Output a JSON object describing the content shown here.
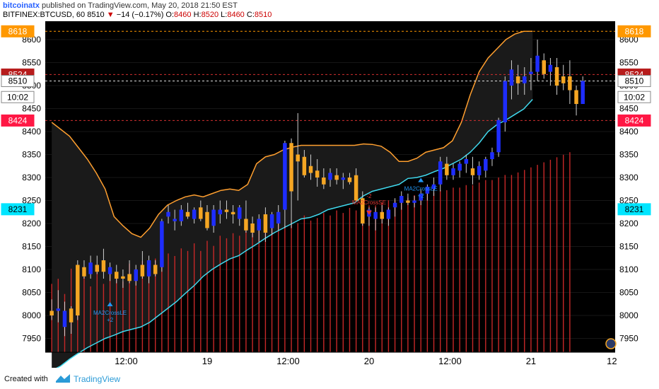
{
  "header": {
    "user": "bitcoinatx",
    "published": " published on TradingView.com, May 20, 2018 21:50 EST",
    "symbol": "BITFINEX:BTCUSD, 60",
    "last": "8510",
    "change_arrow": "▼",
    "change": "−14 (−0.17%)",
    "o_label": "O:",
    "o": "8460",
    "h_label": "H:",
    "h": "8520",
    "l_label": "L:",
    "l": "8460",
    "c_label": "C:",
    "c": "8510"
  },
  "footer": {
    "created_with": "Created with",
    "brand": "TradingView"
  },
  "chart_data": {
    "type": "candlestick",
    "y_range": [
      7920,
      8640
    ],
    "y_ticks": [
      7950,
      8000,
      8050,
      8100,
      8150,
      8200,
      8250,
      8300,
      8350,
      8400,
      8450,
      8500,
      8550,
      8600
    ],
    "x_ticks": [
      {
        "label": "12:00",
        "t": 18.5
      },
      {
        "label": "19",
        "t": 31
      },
      {
        "label": "12:00",
        "t": 43.5
      },
      {
        "label": "20",
        "t": 56
      },
      {
        "label": "12:00",
        "t": 68.5
      },
      {
        "label": "21",
        "t": 81
      },
      {
        "label": "12",
        "t": 93.5
      }
    ],
    "x_range": [
      6,
      94
    ],
    "price_labels": [
      {
        "text": "8618",
        "value": 8618,
        "bg": "#ff9800",
        "fg": "#ffffff",
        "line": "#ff9800",
        "dash": true
      },
      {
        "text": "8524",
        "value": 8524,
        "bg": "#b71c1c",
        "fg": "#ffffff",
        "line": "#d32f2f",
        "dash": true
      },
      {
        "text": "8510",
        "value": 8510,
        "bg": "#ffffff",
        "fg": "#000000",
        "line": "#dddddd",
        "dash": true
      },
      {
        "text": "10:02",
        "value": 8475,
        "bg": "#ffffff",
        "fg": "#000000",
        "line": null,
        "dash": false
      },
      {
        "text": "8424",
        "value": 8424,
        "bg": "#ff1744",
        "fg": "#ffffff",
        "line": "#d32f2f",
        "dash": true
      },
      {
        "text": "8231",
        "value": 8231,
        "bg": "#00e5ff",
        "fg": "#000000",
        "line": null,
        "dash": false
      }
    ],
    "annotations": [
      {
        "text": "MA2CrossLE",
        "sub": "+2",
        "t": 16,
        "value": 8020,
        "color": "#2196f3",
        "dir": "up"
      },
      {
        "text": "MA2CrossSE",
        "sub": "-2",
        "t": 56,
        "value": 8225,
        "color": "#e53935",
        "dir": "down"
      },
      {
        "text": "MA2CrossLE",
        "sub": "+2",
        "t": 64,
        "value": 8290,
        "color": "#2196f3",
        "dir": "up"
      }
    ],
    "colors": {
      "up": "#1e2dff",
      "down": "#f5a623",
      "upper_band": "#ff9f2f",
      "lower_band": "#40d9ee",
      "volume": "#c62828",
      "bg": "#000000",
      "band_fill": "#1a1a1a"
    },
    "upper_band": [
      8420,
      8405,
      8390,
      8365,
      8340,
      8310,
      8275,
      8215,
      8195,
      8178,
      8170,
      8190,
      8220,
      8240,
      8250,
      8258,
      8262,
      8258,
      8265,
      8272,
      8275,
      8272,
      8285,
      8330,
      8345,
      8350,
      8360,
      8366,
      8370,
      8370,
      8370,
      8370,
      8370,
      8370,
      8370,
      8373,
      8372,
      8368,
      8355,
      8335,
      8335,
      8342,
      8355,
      8360,
      8365,
      8380,
      8420,
      8480,
      8530,
      8560,
      8580,
      8600,
      8612,
      8618,
      8618
    ],
    "lower_band": [
      7880,
      7890,
      7905,
      7918,
      7930,
      7940,
      7950,
      7957,
      7965,
      7970,
      7975,
      7985,
      8000,
      8015,
      8030,
      8048,
      8065,
      8085,
      8100,
      8112,
      8123,
      8130,
      8143,
      8155,
      8168,
      8180,
      8190,
      8200,
      8210,
      8213,
      8220,
      8230,
      8235,
      8240,
      8245,
      8260,
      8270,
      8275,
      8280,
      8285,
      8298,
      8300,
      8305,
      8313,
      8320,
      8330,
      8340,
      8355,
      8375,
      8400,
      8415,
      8425,
      8437,
      8449,
      8470
    ],
    "candles": [
      {
        "o": 8010,
        "h": 8035,
        "l": 7990,
        "c": 8000
      },
      {
        "o": 8010,
        "h": 8055,
        "l": 7985,
        "c": 8015
      },
      {
        "o": 7975,
        "h": 8030,
        "l": 7955,
        "c": 8010
      },
      {
        "o": 8015,
        "h": 8020,
        "l": 7960,
        "c": 7985
      },
      {
        "o": 8110,
        "h": 8120,
        "l": 7990,
        "c": 8000
      },
      {
        "o": 8105,
        "h": 8120,
        "l": 8080,
        "c": 8085
      },
      {
        "o": 8090,
        "h": 8130,
        "l": 8080,
        "c": 8115
      },
      {
        "o": 8110,
        "h": 8130,
        "l": 8090,
        "c": 8095
      },
      {
        "o": 8120,
        "h": 8145,
        "l": 8080,
        "c": 8095
      },
      {
        "o": 8090,
        "h": 8115,
        "l": 8075,
        "c": 8105
      },
      {
        "o": 8095,
        "h": 8110,
        "l": 8070,
        "c": 8080
      },
      {
        "o": 8085,
        "h": 8100,
        "l": 8060,
        "c": 8080
      },
      {
        "o": 8090,
        "h": 8120,
        "l": 8070,
        "c": 8075
      },
      {
        "o": 8075,
        "h": 8110,
        "l": 8065,
        "c": 8100
      },
      {
        "o": 8110,
        "h": 8140,
        "l": 8080,
        "c": 8085
      },
      {
        "o": 8085,
        "h": 8130,
        "l": 8070,
        "c": 8120
      },
      {
        "o": 8110,
        "h": 8120,
        "l": 8085,
        "c": 8090
      },
      {
        "o": 8105,
        "h": 8210,
        "l": 8095,
        "c": 8205
      },
      {
        "o": 8215,
        "h": 8240,
        "l": 8200,
        "c": 8225
      },
      {
        "o": 8205,
        "h": 8230,
        "l": 8185,
        "c": 8210
      },
      {
        "o": 8205,
        "h": 8240,
        "l": 8195,
        "c": 8230
      },
      {
        "o": 8225,
        "h": 8245,
        "l": 8210,
        "c": 8215
      },
      {
        "o": 8210,
        "h": 8235,
        "l": 8200,
        "c": 8230
      },
      {
        "o": 8235,
        "h": 8250,
        "l": 8205,
        "c": 8210
      },
      {
        "o": 8225,
        "h": 8240,
        "l": 8185,
        "c": 8190
      },
      {
        "o": 8195,
        "h": 8240,
        "l": 8180,
        "c": 8230
      },
      {
        "o": 8220,
        "h": 8250,
        "l": 8200,
        "c": 8230
      },
      {
        "o": 8230,
        "h": 8250,
        "l": 8210,
        "c": 8225
      },
      {
        "o": 8225,
        "h": 8240,
        "l": 8200,
        "c": 8220
      },
      {
        "o": 8210,
        "h": 8240,
        "l": 8195,
        "c": 8235
      },
      {
        "o": 8210,
        "h": 8250,
        "l": 8180,
        "c": 8185
      },
      {
        "o": 8200,
        "h": 8215,
        "l": 8170,
        "c": 8180
      },
      {
        "o": 8185,
        "h": 8220,
        "l": 8160,
        "c": 8210
      },
      {
        "o": 8220,
        "h": 8235,
        "l": 8160,
        "c": 8180
      },
      {
        "o": 8190,
        "h": 8225,
        "l": 8175,
        "c": 8220
      },
      {
        "o": 8200,
        "h": 8240,
        "l": 8185,
        "c": 8225
      },
      {
        "o": 8230,
        "h": 8380,
        "l": 8190,
        "c": 8375
      },
      {
        "o": 8375,
        "h": 8385,
        "l": 8190,
        "c": 8270
      },
      {
        "o": 8350,
        "h": 8440,
        "l": 8250,
        "c": 8335
      },
      {
        "o": 8345,
        "h": 8360,
        "l": 8300,
        "c": 8305
      },
      {
        "o": 8325,
        "h": 8350,
        "l": 8295,
        "c": 8310
      },
      {
        "o": 8315,
        "h": 8340,
        "l": 8280,
        "c": 8300
      },
      {
        "o": 8300,
        "h": 8320,
        "l": 8275,
        "c": 8285
      },
      {
        "o": 8295,
        "h": 8320,
        "l": 8280,
        "c": 8310
      },
      {
        "o": 8305,
        "h": 8320,
        "l": 8285,
        "c": 8295
      },
      {
        "o": 8295,
        "h": 8310,
        "l": 8275,
        "c": 8300
      },
      {
        "o": 8300,
        "h": 8310,
        "l": 8285,
        "c": 8290
      },
      {
        "o": 8305,
        "h": 8320,
        "l": 8250,
        "c": 8250
      },
      {
        "o": 8255,
        "h": 8270,
        "l": 8195,
        "c": 8200
      },
      {
        "o": 8215,
        "h": 8235,
        "l": 8195,
        "c": 8230
      },
      {
        "o": 8210,
        "h": 8235,
        "l": 8185,
        "c": 8225
      },
      {
        "o": 8225,
        "h": 8240,
        "l": 8200,
        "c": 8210
      },
      {
        "o": 8210,
        "h": 8235,
        "l": 8195,
        "c": 8230
      },
      {
        "o": 8235,
        "h": 8255,
        "l": 8215,
        "c": 8245
      },
      {
        "o": 8245,
        "h": 8270,
        "l": 8230,
        "c": 8260
      },
      {
        "o": 8250,
        "h": 8265,
        "l": 8240,
        "c": 8245
      },
      {
        "o": 8245,
        "h": 8260,
        "l": 8235,
        "c": 8250
      },
      {
        "o": 8250,
        "h": 8275,
        "l": 8240,
        "c": 8265
      },
      {
        "o": 8265,
        "h": 8285,
        "l": 8250,
        "c": 8280
      },
      {
        "o": 8275,
        "h": 8300,
        "l": 8260,
        "c": 8285
      },
      {
        "o": 8285,
        "h": 8345,
        "l": 8270,
        "c": 8335
      },
      {
        "o": 8330,
        "h": 8345,
        "l": 8295,
        "c": 8305
      },
      {
        "o": 8305,
        "h": 8330,
        "l": 8295,
        "c": 8320
      },
      {
        "o": 8315,
        "h": 8335,
        "l": 8300,
        "c": 8330
      },
      {
        "o": 8330,
        "h": 8350,
        "l": 8310,
        "c": 8340
      },
      {
        "o": 8320,
        "h": 8345,
        "l": 8285,
        "c": 8305
      },
      {
        "o": 8305,
        "h": 8335,
        "l": 8295,
        "c": 8325
      },
      {
        "o": 8315,
        "h": 8345,
        "l": 8300,
        "c": 8340
      },
      {
        "o": 8340,
        "h": 8365,
        "l": 8325,
        "c": 8355
      },
      {
        "o": 8355,
        "h": 8430,
        "l": 8345,
        "c": 8425
      },
      {
        "o": 8420,
        "h": 8520,
        "l": 8400,
        "c": 8510
      },
      {
        "o": 8500,
        "h": 8555,
        "l": 8470,
        "c": 8535
      },
      {
        "o": 8520,
        "h": 8545,
        "l": 8480,
        "c": 8505
      },
      {
        "o": 8505,
        "h": 8540,
        "l": 8480,
        "c": 8520
      },
      {
        "o": 8525,
        "h": 8560,
        "l": 8490,
        "c": 8530
      },
      {
        "o": 8530,
        "h": 8600,
        "l": 8510,
        "c": 8565
      },
      {
        "o": 8555,
        "h": 8570,
        "l": 8515,
        "c": 8525
      },
      {
        "o": 8530,
        "h": 8560,
        "l": 8500,
        "c": 8545
      },
      {
        "o": 8540,
        "h": 8560,
        "l": 8480,
        "c": 8500
      },
      {
        "o": 8520,
        "h": 8545,
        "l": 8490,
        "c": 8505
      },
      {
        "o": 8520,
        "h": 8555,
        "l": 8460,
        "c": 8490
      },
      {
        "o": 8490,
        "h": 8500,
        "l": 8435,
        "c": 8460
      },
      {
        "o": 8460,
        "h": 8520,
        "l": 8460,
        "c": 8510
      }
    ],
    "volume_levels": [
      0.27,
      0.29,
      0.23,
      0.33,
      0.28,
      0.3,
      0.26,
      0.34,
      0.27,
      0.31,
      0.3,
      0.28,
      0.35,
      0.3,
      0.36,
      0.34,
      0.37,
      0.36,
      0.39,
      0.38,
      0.41,
      0.4,
      0.43,
      0.4,
      0.44,
      0.42,
      0.46,
      0.45,
      0.47,
      0.46,
      0.49,
      0.47,
      0.48,
      0.5,
      0.49,
      0.51,
      0.5,
      0.52,
      0.51,
      0.54,
      0.52,
      0.53,
      0.55,
      0.54,
      0.56,
      0.55,
      0.57,
      0.56,
      0.57,
      0.58,
      0.58,
      0.59,
      0.6,
      0.6,
      0.61,
      0.61,
      0.62,
      0.62,
      0.63,
      0.63,
      0.64,
      0.64,
      0.65,
      0.65,
      0.66,
      0.66,
      0.67,
      0.68,
      0.68,
      0.69,
      0.7,
      0.7,
      0.71,
      0.72,
      0.73,
      0.74,
      0.75,
      0.76,
      0.77,
      0.78,
      0.79
    ]
  }
}
